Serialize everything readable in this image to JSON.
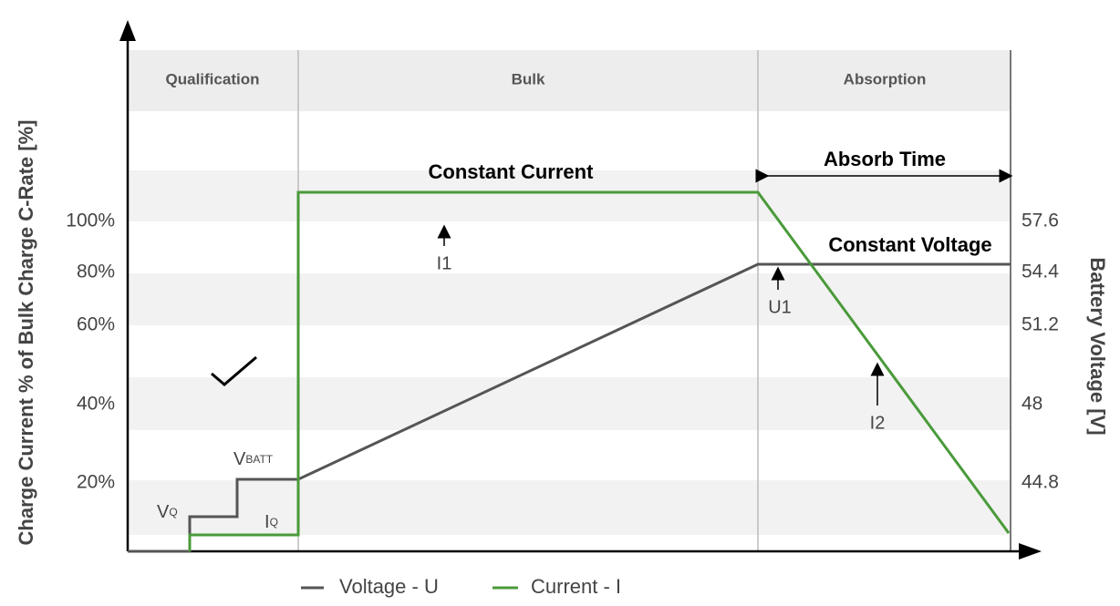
{
  "phases": [
    "Qualification",
    "Bulk",
    "Absorption"
  ],
  "left_axis": {
    "title": "Charge Current % of Bulk Charge C-Rate [%]",
    "ticks": [
      "100%",
      "80%",
      "60%",
      "40%",
      "20%"
    ]
  },
  "right_axis": {
    "title": "Battery Voltage [V]",
    "ticks": [
      "57.6",
      "54.4",
      "51.2",
      "48",
      "44.8"
    ]
  },
  "annotations": {
    "constant_current": "Constant Current",
    "absorb_time": "Absorb Time",
    "constant_voltage": "Constant Voltage",
    "i1": "I1",
    "u1": "U1",
    "i2": "I2",
    "vq": {
      "main": "V",
      "sub": "Q"
    },
    "vbatt": {
      "main": "V",
      "sub": "BATT"
    },
    "iq": {
      "main": "I",
      "sub": "Q"
    }
  },
  "legend": [
    "Voltage - U",
    "Current - I"
  ]
}
